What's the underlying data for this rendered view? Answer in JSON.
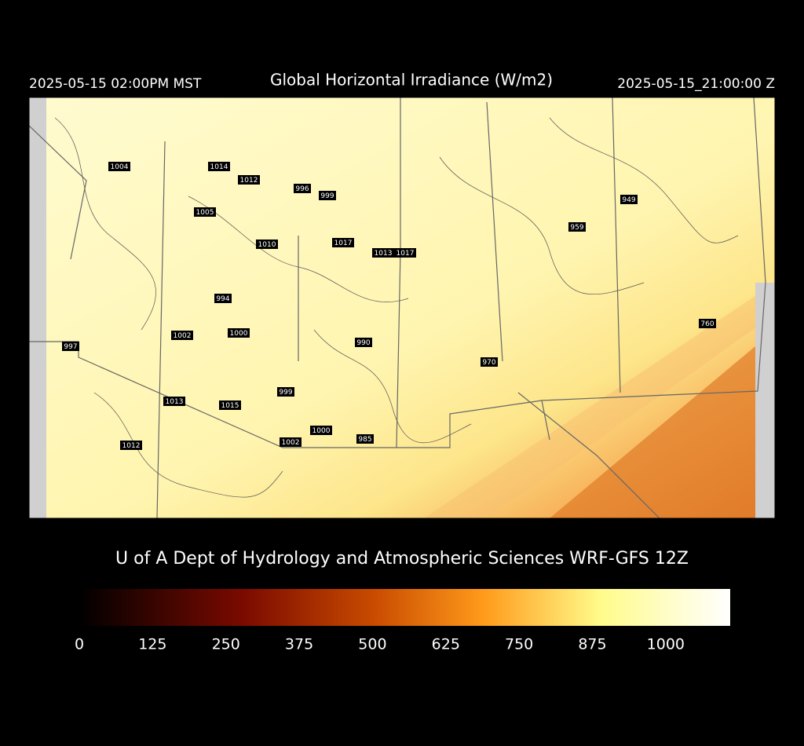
{
  "header": {
    "local_time": "2025-05-15 02:00PM MST",
    "title": "Global Horizontal Irradiance (W/m2)",
    "utc_time": "2025-05-15_21:00:00 Z"
  },
  "map": {
    "labels": [
      1004,
      1014,
      1012,
      996,
      999,
      1005,
      1010,
      1017,
      1013,
      1017,
      949,
      959,
      994,
      1002,
      1000,
      997,
      990,
      970,
      760,
      999,
      1013,
      1015,
      1000,
      1002,
      985,
      1012
    ]
  },
  "credit": "U of A Dept of Hydrology and Atmospheric Sciences WRF-GFS 12Z",
  "colorbar": {
    "lim": [
      0,
      1110
    ],
    "ticks": [
      0,
      125,
      250,
      375,
      500,
      625,
      750,
      875,
      1000
    ]
  }
}
